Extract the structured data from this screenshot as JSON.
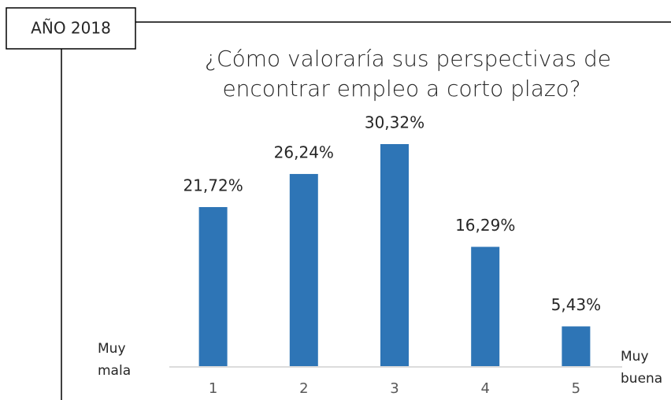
{
  "chart_data": {
    "type": "bar",
    "title": [
      "¿Cómo valoraría sus perspectivas de",
      "encontrar empleo a corto plazo?"
    ],
    "year_label": "AÑO 2018",
    "annotations": {
      "left": [
        "Muy",
        "mala"
      ],
      "right": [
        "Muy",
        "buena"
      ]
    },
    "categories": [
      "1",
      "2",
      "3",
      "4",
      "5"
    ],
    "values": [
      21.72,
      26.24,
      30.32,
      16.29,
      5.43
    ],
    "value_labels": [
      "21,72%",
      "26,24%",
      "30,32%",
      "16,29%",
      "5,43%"
    ],
    "color": "#2e75b6"
  }
}
